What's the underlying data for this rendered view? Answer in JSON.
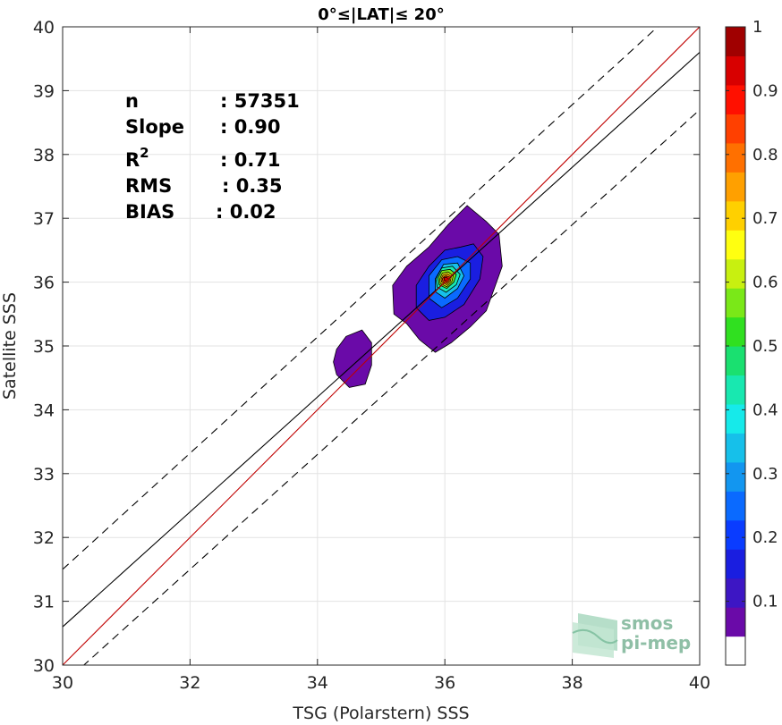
{
  "chart_data": {
    "type": "scatter",
    "title": "0°≤|LAT|≤ 20°",
    "xlabel": "TSG (Polarstern) SSS",
    "ylabel": "Satellite SSS",
    "xlim": [
      30,
      40
    ],
    "ylim": [
      30,
      40
    ],
    "xticks": [
      "30",
      "32",
      "34",
      "36",
      "38",
      "40"
    ],
    "yticks": [
      "30",
      "31",
      "32",
      "33",
      "34",
      "35",
      "36",
      "37",
      "38",
      "39",
      "40"
    ],
    "grid": true,
    "stats": [
      {
        "label": "n",
        "value": ": 57351"
      },
      {
        "label": "Slope",
        "value": ": 0.90"
      },
      {
        "label": "R",
        "sup": "2",
        "value": ": 0.71"
      },
      {
        "label": "RMS",
        "value": ": 0.35"
      },
      {
        "label": "BIAS",
        "value": ": 0.02"
      }
    ],
    "lines": {
      "identity": {
        "color": "#c00000",
        "x": [
          30,
          40
        ],
        "y": [
          30,
          40
        ]
      },
      "fit": {
        "color": "#000000",
        "x": [
          30,
          40
        ],
        "y": [
          30.6,
          39.6
        ]
      },
      "upper_bound": {
        "color": "#000000",
        "dash": true,
        "x": [
          30,
          40
        ],
        "y": [
          31.5,
          40.6
        ]
      },
      "lower_bound": {
        "color": "#000000",
        "dash": true,
        "x": [
          30,
          40
        ],
        "y": [
          29.7,
          38.7
        ]
      }
    },
    "density_contours": {
      "peak": [
        36.0,
        36.05
      ],
      "levels": [
        {
          "level": 0.05,
          "polygon": [
            [
              35.2,
              35.5
            ],
            [
              35.4,
              35.35
            ],
            [
              35.6,
              35.1
            ],
            [
              35.85,
              34.9
            ],
            [
              36.1,
              35.05
            ],
            [
              36.4,
              35.3
            ],
            [
              36.65,
              35.55
            ],
            [
              36.9,
              36.25
            ],
            [
              36.85,
              36.75
            ],
            [
              36.65,
              36.95
            ],
            [
              36.35,
              37.2
            ],
            [
              36.05,
              36.9
            ],
            [
              35.75,
              36.55
            ],
            [
              35.4,
              36.25
            ],
            [
              35.18,
              35.95
            ]
          ]
        },
        {
          "level": 0.05,
          "polygon": [
            [
              34.3,
              34.95
            ],
            [
              34.45,
              35.15
            ],
            [
              34.7,
              35.25
            ],
            [
              34.85,
              35.05
            ],
            [
              34.85,
              34.7
            ],
            [
              34.75,
              34.4
            ],
            [
              34.5,
              34.35
            ],
            [
              34.3,
              34.55
            ],
            [
              34.25,
              34.75
            ]
          ]
        },
        {
          "level": 0.15,
          "polygon": [
            [
              35.55,
              35.6
            ],
            [
              35.75,
              35.4
            ],
            [
              36.0,
              35.45
            ],
            [
              36.3,
              35.65
            ],
            [
              36.55,
              36.05
            ],
            [
              36.6,
              36.4
            ],
            [
              36.45,
              36.6
            ],
            [
              36.25,
              36.55
            ],
            [
              36.0,
              36.5
            ],
            [
              35.75,
              36.25
            ],
            [
              35.55,
              35.95
            ]
          ]
        },
        {
          "level": 0.25,
          "polygon": [
            [
              35.75,
              35.75
            ],
            [
              35.95,
              35.6
            ],
            [
              36.2,
              35.75
            ],
            [
              36.4,
              36.05
            ],
            [
              36.4,
              36.3
            ],
            [
              36.2,
              36.4
            ],
            [
              35.95,
              36.35
            ],
            [
              35.75,
              36.1
            ]
          ]
        },
        {
          "level": 0.35,
          "polygon": [
            [
              35.85,
              35.85
            ],
            [
              36.0,
              35.75
            ],
            [
              36.2,
              35.9
            ],
            [
              36.3,
              36.1
            ],
            [
              36.2,
              36.3
            ],
            [
              35.98,
              36.28
            ],
            [
              35.85,
              36.05
            ]
          ]
        },
        {
          "level": 0.45,
          "polygon": [
            [
              35.88,
              35.92
            ],
            [
              36.02,
              35.84
            ],
            [
              36.18,
              35.96
            ],
            [
              36.24,
              36.12
            ],
            [
              36.12,
              36.25
            ],
            [
              35.95,
              36.22
            ],
            [
              35.86,
              36.05
            ]
          ]
        },
        {
          "level": 0.55,
          "polygon": [
            [
              35.91,
              35.96
            ],
            [
              36.03,
              35.9
            ],
            [
              36.14,
              36.0
            ],
            [
              36.18,
              36.12
            ],
            [
              36.08,
              36.2
            ],
            [
              35.95,
              36.18
            ],
            [
              35.89,
              36.06
            ]
          ]
        },
        {
          "level": 0.65,
          "polygon": [
            [
              35.93,
              35.98
            ],
            [
              36.03,
              35.93
            ],
            [
              36.11,
              36.01
            ],
            [
              36.13,
              36.1
            ],
            [
              36.05,
              36.16
            ],
            [
              35.96,
              36.14
            ],
            [
              35.92,
              36.05
            ]
          ]
        },
        {
          "level": 0.75,
          "polygon": [
            [
              35.95,
              36.0
            ],
            [
              36.03,
              35.96
            ],
            [
              36.09,
              36.02
            ],
            [
              36.1,
              36.09
            ],
            [
              36.04,
              36.13
            ],
            [
              35.97,
              36.11
            ],
            [
              35.94,
              36.05
            ]
          ]
        },
        {
          "level": 0.85,
          "polygon": [
            [
              35.97,
              36.01
            ],
            [
              36.03,
              35.99
            ],
            [
              36.07,
              36.03
            ],
            [
              36.07,
              36.08
            ],
            [
              36.02,
              36.1
            ],
            [
              35.98,
              36.08
            ],
            [
              35.96,
              36.05
            ]
          ]
        },
        {
          "level": 0.95,
          "polygon": [
            [
              35.99,
              36.03
            ],
            [
              36.03,
              36.02
            ],
            [
              36.05,
              36.05
            ],
            [
              36.03,
              36.08
            ],
            [
              35.99,
              36.07
            ]
          ]
        }
      ]
    },
    "colorbar": {
      "range": [
        0,
        1
      ],
      "ticks": [
        "0.1",
        "0.2",
        "0.3",
        "0.4",
        "0.5",
        "0.6",
        "0.7",
        "0.8",
        "0.9",
        "1"
      ],
      "colors": [
        "#ffffff",
        "#6a0aa8",
        "#3d16c4",
        "#1a1ee0",
        "#0a3cff",
        "#0a6aff",
        "#1296f0",
        "#16c0ea",
        "#16eaea",
        "#18e8b0",
        "#1ae070",
        "#30e020",
        "#7ae818",
        "#c8f010",
        "#ffff10",
        "#ffd000",
        "#ffa000",
        "#ff7000",
        "#ff4000",
        "#ff1000",
        "#d80000",
        "#a00000"
      ]
    },
    "logo": {
      "line1": "smos",
      "line2": "pi-mep"
    }
  }
}
